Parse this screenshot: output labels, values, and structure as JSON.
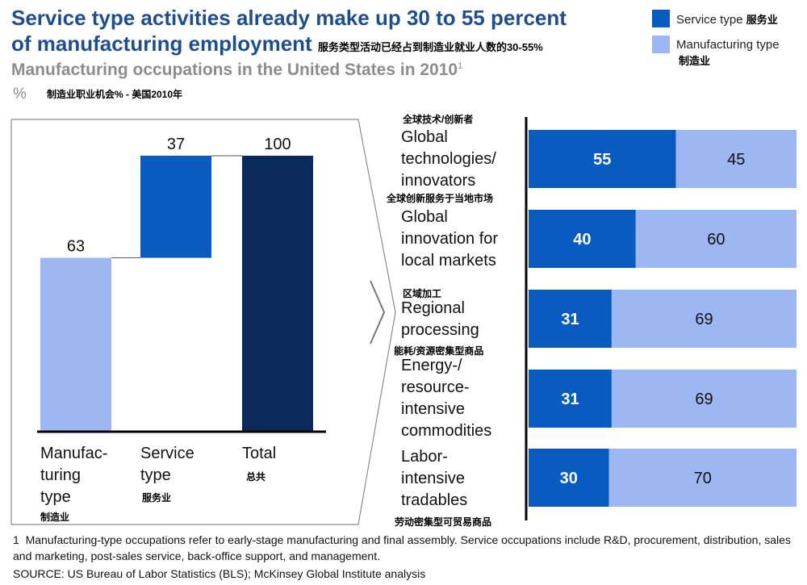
{
  "title_line1": "Service type activities already make up 30 to 55 percent",
  "title_line2": "of manufacturing employment",
  "title_cn": "服务类型活动已经占到制造业就业人数的30-55%",
  "subtitle": "Manufacturing occupations in the United States in 2010",
  "subtitle_note": "1",
  "unit": "%",
  "unit_cn": "制造业职业机会% - 美国2010年",
  "legend": {
    "service": {
      "label": "Service type",
      "cn": "服务业",
      "color": "#0a5bbf"
    },
    "manufacturing": {
      "label": "Manufacturing type",
      "cn": "制造业",
      "color": "#9db7f3"
    }
  },
  "left_labels": {
    "manufacturing": {
      "lines": [
        "Manufac-",
        "turing",
        "type"
      ],
      "cn": "制造业"
    },
    "service": {
      "lines": [
        "Service",
        "type"
      ],
      "cn": "服务业"
    },
    "total": {
      "lines": [
        "Total"
      ],
      "cn": "总共"
    }
  },
  "right_labels": [
    {
      "cn": "全球技术/创新者",
      "lines": [
        "Global",
        "technologies/",
        "innovators"
      ]
    },
    {
      "cn": "全球创新服务于当地市场",
      "lines": [
        "Global",
        "innovation for",
        "local markets"
      ]
    },
    {
      "cn": "区域加工",
      "lines": [
        "Regional",
        "processing"
      ]
    },
    {
      "cn": "能耗/资源密集型商品",
      "lines": [
        "Energy-/",
        "resource-",
        "intensive",
        "commodities"
      ]
    },
    {
      "cn": "劳动密集型可贸易商品",
      "lines": [
        "Labor-",
        "intensive",
        "tradables"
      ]
    }
  ],
  "chart_data": [
    {
      "type": "bar",
      "subtype": "waterfall",
      "title": "Manufacturing occupations in the United States in 2010",
      "categories": [
        "Manufacturing type",
        "Service type",
        "Total"
      ],
      "values": [
        63,
        37,
        100
      ],
      "ylabel": "%",
      "ylim": [
        0,
        100
      ],
      "colors": [
        "#9db7f3",
        "#0a5bbf",
        "#0b2a5c"
      ]
    },
    {
      "type": "bar",
      "subtype": "stacked-horizontal-100",
      "categories": [
        "Global technologies/innovators",
        "Global innovation for local markets",
        "Regional processing",
        "Energy-/resource-intensive commodities",
        "Labor-intensive tradables"
      ],
      "series": [
        {
          "name": "Service type",
          "values": [
            55,
            40,
            31,
            31,
            30
          ],
          "color": "#0a5bbf"
        },
        {
          "name": "Manufacturing type",
          "values": [
            45,
            60,
            69,
            69,
            70
          ],
          "color": "#9db7f3"
        }
      ],
      "xlim": [
        0,
        100
      ]
    }
  ],
  "footnote_num": "1",
  "footnote": "Manufacturing-type occupations refer to early-stage manufacturing and final assembly. Service occupations include R&D, procurement, distribution, sales and marketing, post-sales service, back-office support, and management.",
  "source": "SOURCE: US Bureau of Labor Statistics (BLS); McKinsey Global Institute analysis"
}
